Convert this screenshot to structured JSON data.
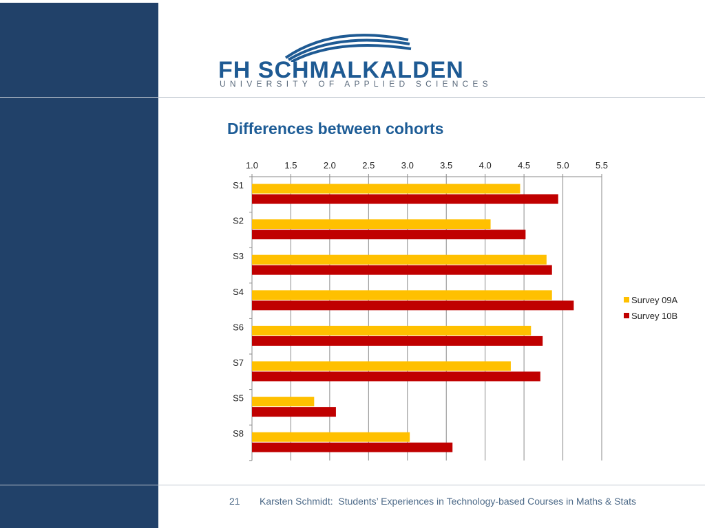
{
  "logo": {
    "name": "FH SCHMALKALDEN",
    "subtitle": "UNIVERSITY OF APPLIED SCIENCES"
  },
  "slide": {
    "title": "Differences between cohorts"
  },
  "footer": {
    "page_number": "21",
    "text": "Karsten Schmidt:  Students’ Experiences in Technology-based Courses in Maths & Stats"
  },
  "colors": {
    "sidebar": "#214169",
    "title": "#1d5c96",
    "series_09A": "#ffc000",
    "series_10B": "#c00000"
  },
  "chart_data": {
    "type": "bar",
    "orientation": "horizontal",
    "title": "",
    "xlabel": "",
    "ylabel": "",
    "xlim": [
      1.0,
      5.5
    ],
    "x_ticks": [
      "1.0",
      "1.5",
      "2.0",
      "2.5",
      "3.0",
      "3.5",
      "4.0",
      "4.5",
      "5.0",
      "5.5"
    ],
    "x_axis_position": "top",
    "grid": true,
    "legend_position": "right",
    "categories": [
      "S1",
      "S2",
      "S3",
      "S4",
      "S6",
      "S7",
      "S5",
      "S8"
    ],
    "series": [
      {
        "name": "Survey 09A",
        "color": "#ffc000",
        "values": [
          4.45,
          4.07,
          4.79,
          4.86,
          4.59,
          4.33,
          1.8,
          3.03
        ]
      },
      {
        "name": "Survey 10B",
        "color": "#c00000",
        "values": [
          4.94,
          4.52,
          4.86,
          5.14,
          4.74,
          4.71,
          2.08,
          3.58
        ]
      }
    ]
  }
}
